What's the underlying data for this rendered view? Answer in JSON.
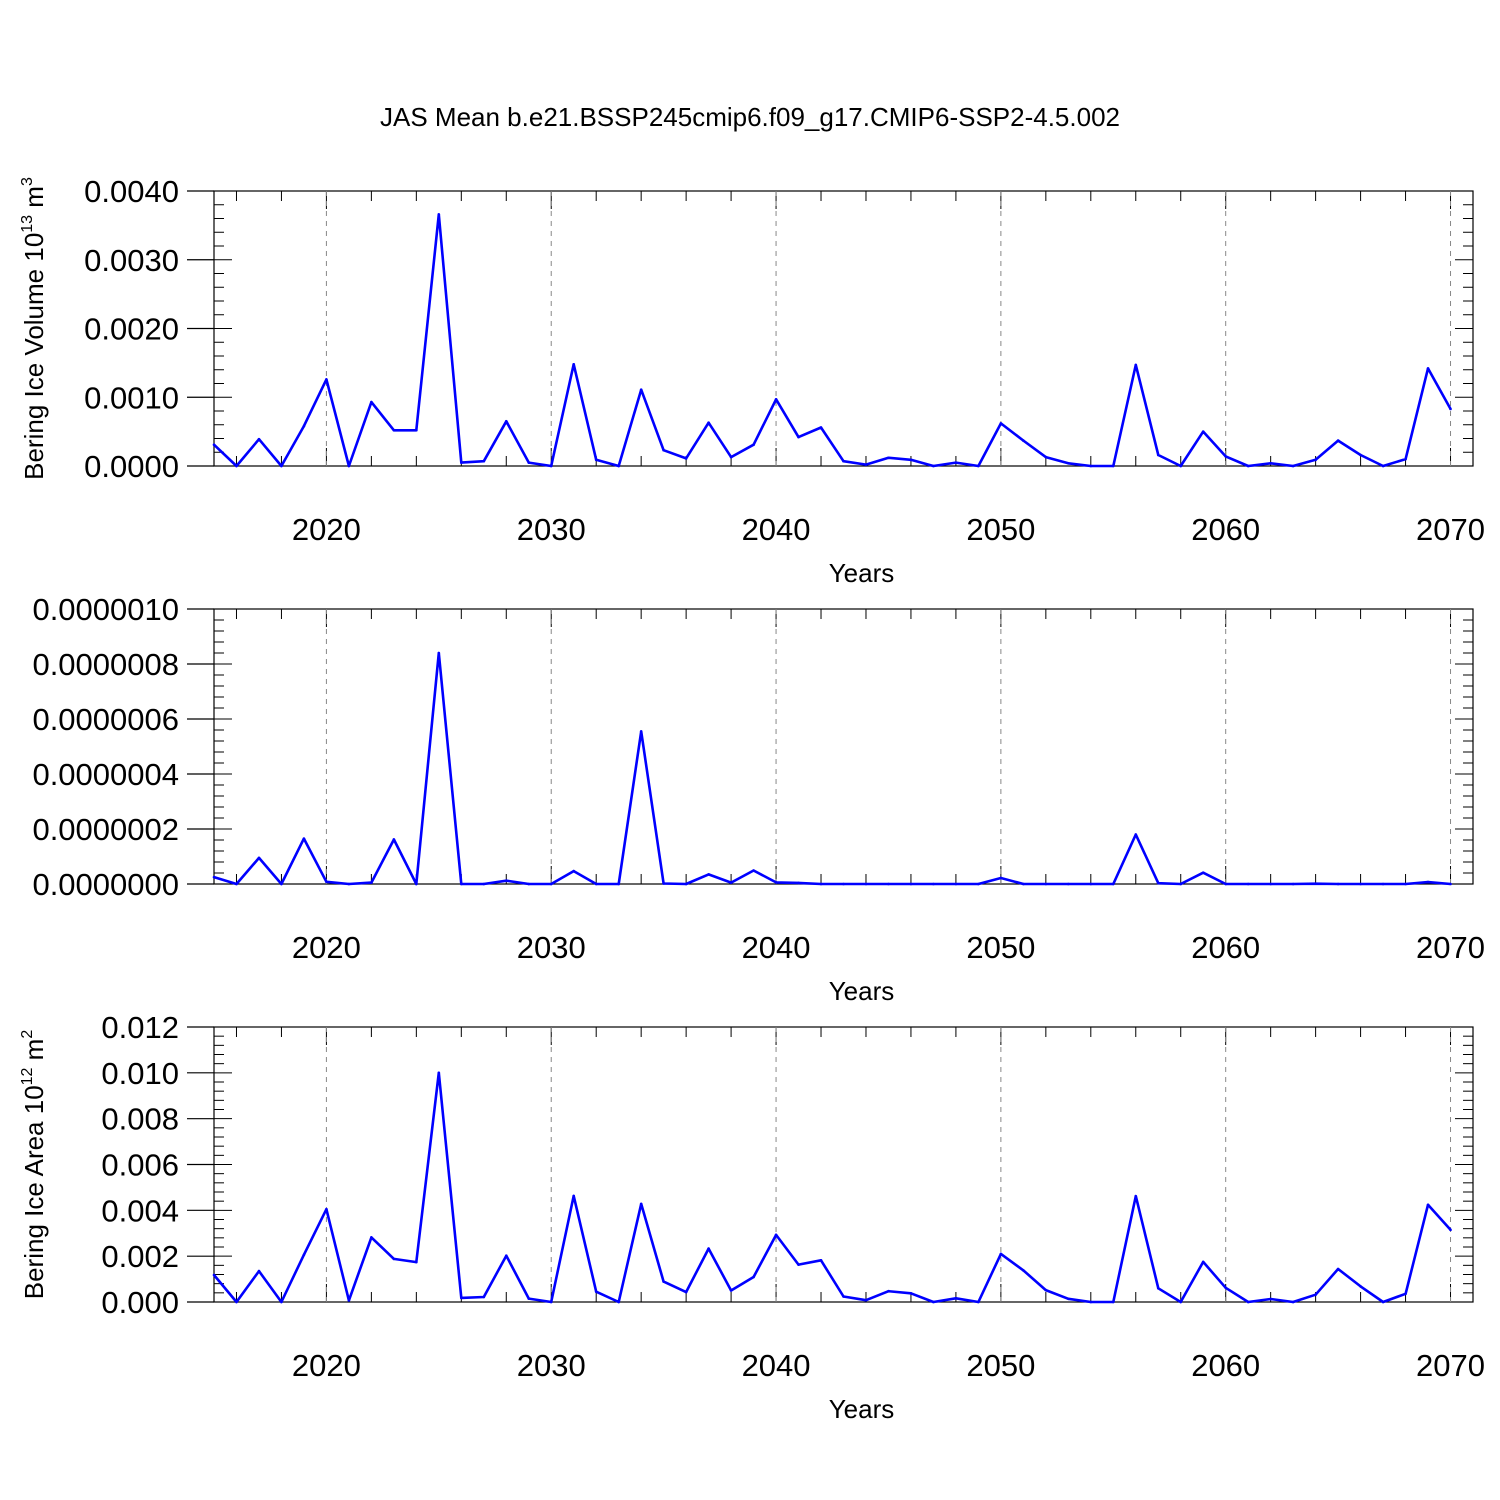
{
  "title": "JAS Mean b.e21.BSSP245cmip6.f09_g17.CMIP6-SSP2-4.5.002",
  "line_color": "#0000ff",
  "chart_data": [
    {
      "type": "line",
      "title": "",
      "xlabel": "Years",
      "ylabel": "Bering Ice Volume 10",
      "ylabel_power": "13",
      "ylabel_unit": "m",
      "ylabel_unit_power": "3",
      "xlim": [
        2015,
        2070
      ],
      "ylim": [
        0,
        0.004
      ],
      "grid": "dashed vertical at major x ticks",
      "x_ticks": [
        "2020",
        "2030",
        "2040",
        "2050",
        "2060",
        "2070"
      ],
      "y_ticks": [
        "0.0000",
        "0.0010",
        "0.0020",
        "0.0030",
        "0.0040"
      ],
      "x": [
        2015,
        2016,
        2017,
        2018,
        2019,
        2020,
        2021,
        2022,
        2023,
        2024,
        2025,
        2026,
        2027,
        2028,
        2029,
        2030,
        2031,
        2032,
        2033,
        2034,
        2035,
        2036,
        2037,
        2038,
        2039,
        2040,
        2041,
        2042,
        2043,
        2044,
        2045,
        2046,
        2047,
        2048,
        2049,
        2050,
        2051,
        2052,
        2053,
        2054,
        2055,
        2056,
        2057,
        2058,
        2059,
        2060,
        2061,
        2062,
        2063,
        2064,
        2065,
        2066,
        2067,
        2068,
        2069,
        2070
      ],
      "y": [
        0.00031,
        0.0,
        0.00039,
        0.0,
        0.00058,
        0.00126,
        0.0,
        0.00093,
        0.00052,
        0.00052,
        0.00366,
        5e-05,
        7e-05,
        0.00065,
        5e-05,
        0.0,
        0.00148,
        9e-05,
        0.0,
        0.00111,
        0.00023,
        0.00011,
        0.00063,
        0.00013,
        0.00031,
        0.00097,
        0.00042,
        0.00056,
        7e-05,
        2e-05,
        0.00012,
        9e-05,
        0.0,
        5e-05,
        0.0,
        0.00062,
        0.00037,
        0.00013,
        4e-05,
        0.0,
        0.0,
        0.00147,
        0.00016,
        0.0,
        0.0005,
        0.00014,
        0.0,
        4e-05,
        0.0,
        9e-05,
        0.00037,
        0.00016,
        0.0,
        0.0001,
        0.00142,
        0.00083
      ]
    },
    {
      "type": "line",
      "title": "",
      "xlabel": "Years",
      "ylabel": "",
      "xlim": [
        2015,
        2070
      ],
      "ylim": [
        0,
        1e-06
      ],
      "grid": "dashed vertical at major x ticks",
      "x_ticks": [
        "2020",
        "2030",
        "2040",
        "2050",
        "2060",
        "2070"
      ],
      "y_ticks": [
        "0.0000000",
        "0.0000002",
        "0.0000004",
        "0.0000006",
        "0.0000008",
        "0.0000010"
      ],
      "x": [
        2015,
        2016,
        2017,
        2018,
        2019,
        2020,
        2021,
        2022,
        2023,
        2024,
        2025,
        2026,
        2027,
        2028,
        2029,
        2030,
        2031,
        2032,
        2033,
        2034,
        2035,
        2036,
        2037,
        2038,
        2039,
        2040,
        2041,
        2042,
        2043,
        2044,
        2045,
        2046,
        2047,
        2048,
        2049,
        2050,
        2051,
        2052,
        2053,
        2054,
        2055,
        2056,
        2057,
        2058,
        2059,
        2060,
        2061,
        2062,
        2063,
        2064,
        2065,
        2066,
        2067,
        2068,
        2069,
        2070
      ],
      "y": [
        2.5e-08,
        0.0,
        9.5e-08,
        0.0,
        1.65e-07,
        8e-09,
        0.0,
        5e-09,
        1.62e-07,
        0.0,
        8.4e-07,
        0.0,
        0.0,
        1.2e-08,
        0.0,
        0.0,
        4.7e-08,
        0.0,
        0.0,
        5.55e-07,
        2e-09,
        0.0,
        3.5e-08,
        5e-09,
        4.9e-08,
        6e-09,
        4e-09,
        0.0,
        0.0,
        0.0,
        0.0,
        0.0,
        0.0,
        0.0,
        0.0,
        2.2e-08,
        0.0,
        0.0,
        0.0,
        0.0,
        0.0,
        1.8e-07,
        3e-09,
        0.0,
        4.1e-08,
        0.0,
        0.0,
        0.0,
        0.0,
        1e-09,
        0.0,
        0.0,
        0.0,
        0.0,
        7e-09,
        0.0
      ]
    },
    {
      "type": "line",
      "title": "",
      "xlabel": "Years",
      "ylabel": "Bering Ice Area 10",
      "ylabel_power": "12",
      "ylabel_unit": "m",
      "ylabel_unit_power": "2",
      "xlim": [
        2015,
        2070
      ],
      "ylim": [
        0,
        0.012
      ],
      "grid": "dashed vertical at major x ticks",
      "x_ticks": [
        "2020",
        "2030",
        "2040",
        "2050",
        "2060",
        "2070"
      ],
      "y_ticks": [
        "0.000",
        "0.002",
        "0.004",
        "0.006",
        "0.008",
        "0.010",
        "0.012"
      ],
      "x": [
        2015,
        2016,
        2017,
        2018,
        2019,
        2020,
        2021,
        2022,
        2023,
        2024,
        2025,
        2026,
        2027,
        2028,
        2029,
        2030,
        2031,
        2032,
        2033,
        2034,
        2035,
        2036,
        2037,
        2038,
        2039,
        2040,
        2041,
        2042,
        2043,
        2044,
        2045,
        2046,
        2047,
        2048,
        2049,
        2050,
        2051,
        2052,
        2053,
        2054,
        2055,
        2056,
        2057,
        2058,
        2059,
        2060,
        2061,
        2062,
        2063,
        2064,
        2065,
        2066,
        2067,
        2068,
        2069,
        2070
      ],
      "y": [
        0.00118,
        0.0,
        0.00135,
        0.0,
        0.00206,
        0.00405,
        7e-05,
        0.00282,
        0.00188,
        0.00174,
        0.01,
        0.00018,
        0.00022,
        0.00202,
        0.00015,
        0.0,
        0.00463,
        0.00045,
        0.0,
        0.00428,
        0.00089,
        0.00043,
        0.00233,
        0.0005,
        0.00109,
        0.00293,
        0.00163,
        0.00182,
        0.00024,
        8e-05,
        0.00047,
        0.00038,
        0.0,
        0.00016,
        0.0,
        0.0021,
        0.00138,
        0.00052,
        0.00014,
        0.0,
        0.0,
        0.00462,
        0.0006,
        0.0,
        0.00175,
        0.00062,
        0.0,
        0.00013,
        0.0,
        0.00032,
        0.00144,
        0.00068,
        0.0,
        0.00036,
        0.00424,
        0.00315
      ]
    }
  ]
}
